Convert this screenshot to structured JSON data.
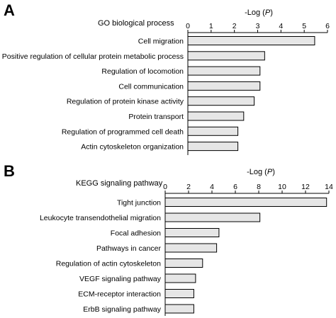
{
  "chart_data": [
    {
      "type": "bar",
      "orientation": "horizontal",
      "panel_label": "A",
      "category_header": "GO biological process",
      "xlabel_prefix": "-Log (",
      "xlabel_var": "P",
      "xlabel_suffix": ")",
      "xlim": [
        0,
        6
      ],
      "xticks": [
        0,
        1,
        2,
        3,
        4,
        5,
        6
      ],
      "categories": [
        "Cell migration",
        "Positive regulation of cellular protein metabolic process",
        "Regulation of locomotion",
        "Cell communication",
        "Regulation of protein kinase activity",
        "Protein transport",
        "Regulation of programmed cell death",
        "Actin cytoskeleton organization"
      ],
      "values": [
        5.45,
        3.3,
        3.1,
        3.1,
        2.85,
        2.4,
        2.15,
        2.15
      ],
      "bar_color": "#e6e6e6"
    },
    {
      "type": "bar",
      "orientation": "horizontal",
      "panel_label": "B",
      "category_header": "KEGG signaling pathway",
      "xlabel_prefix": "-Log (",
      "xlabel_var": "P",
      "xlabel_suffix": ")",
      "xlim": [
        0,
        14
      ],
      "xticks": [
        0,
        2,
        4,
        6,
        8,
        10,
        12,
        14
      ],
      "categories": [
        "Tight junction",
        "Leukocyte transendothelial migration",
        "Focal adhesion",
        "Pathways in cancer",
        "Regulation of actin cytoskeleton",
        "VEGF signaling pathway",
        "ECM-receptor interaction",
        "ErbB signaling pathway"
      ],
      "values": [
        13.8,
        8.1,
        4.6,
        4.4,
        3.2,
        2.6,
        2.45,
        2.45
      ],
      "bar_color": "#e6e6e6"
    }
  ]
}
